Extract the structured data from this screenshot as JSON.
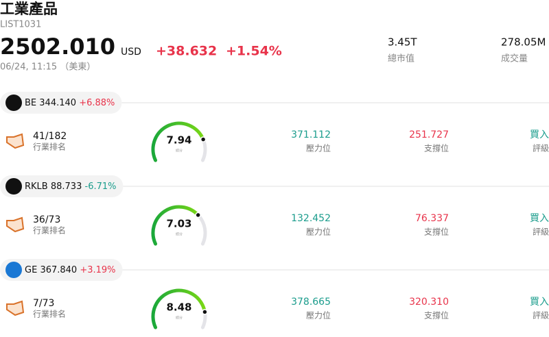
{
  "header": {
    "title": "工業產品",
    "code": "LIST1031",
    "price": "2502.010",
    "currency": "USD",
    "change": "+38.632",
    "change_pct": "+1.54%",
    "time": "06/24, 11:15 （美東）",
    "stats": [
      {
        "value": "3.45T",
        "label": "總市值"
      },
      {
        "value": "278.05M",
        "label": "成交量"
      }
    ]
  },
  "gauge_range": [
    0,
    10
  ],
  "stocks": [
    {
      "ticker": "BE",
      "price": "344.140",
      "change": "+6.88%",
      "up": true,
      "rank": "41/182",
      "rank_label": "行業排名",
      "score": 7.94,
      "score_label": "綜分",
      "resistance": "371.112",
      "resistance_label": "壓力位",
      "support": "251.727",
      "support_label": "支撐位",
      "rating": "買入",
      "rating_label": "評級"
    },
    {
      "ticker": "RKLB",
      "price": "88.733",
      "change": "-6.71%",
      "up": false,
      "rank": "36/73",
      "rank_label": "行業排名",
      "score": 7.03,
      "score_label": "綜分",
      "resistance": "132.452",
      "resistance_label": "壓力位",
      "support": "76.337",
      "support_label": "支撐位",
      "rating": "買入",
      "rating_label": "評級"
    },
    {
      "ticker": "GE",
      "price": "367.840",
      "change": "+3.19%",
      "up": true,
      "rank": "7/73",
      "rank_label": "行業排名",
      "score": 8.48,
      "score_label": "綜分",
      "resistance": "378.665",
      "resistance_label": "壓力位",
      "support": "320.310",
      "support_label": "支撐位",
      "rating": "買入",
      "rating_label": "評級"
    }
  ]
}
